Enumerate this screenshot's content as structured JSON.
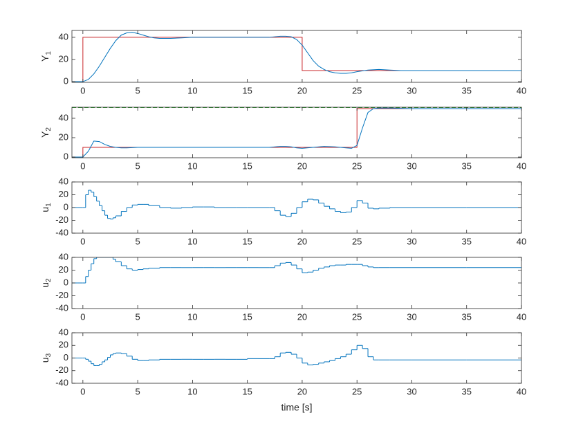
{
  "chart_data": [
    {
      "type": "line",
      "ylabel": "Y",
      "ylabel_sub": "1",
      "xlim": [
        -1,
        40
      ],
      "xticks": [
        0,
        5,
        10,
        15,
        20,
        25,
        30,
        35,
        40
      ],
      "ylim": [
        -0.6,
        46.2
      ],
      "yticks": [
        0,
        20,
        40
      ],
      "series": [
        {
          "color": "#c8262a",
          "x": [
            -1,
            0,
            0,
            20,
            20,
            40
          ],
          "values": [
            0,
            0,
            40,
            40,
            10,
            10
          ]
        },
        {
          "color": "#0072bd",
          "x": [
            -1,
            0,
            0.5,
            1,
            1.5,
            2,
            2.5,
            3,
            3.5,
            4,
            4.5,
            5,
            5.5,
            6,
            6.5,
            7,
            8,
            9,
            10,
            12,
            14,
            16,
            17,
            18,
            18.5,
            19,
            19.5,
            20,
            20.5,
            21,
            21.5,
            22,
            22.5,
            23,
            23.5,
            24,
            24.5,
            25,
            26,
            27,
            28,
            29,
            30,
            35,
            40
          ],
          "values": [
            0,
            0,
            2,
            7,
            14,
            22,
            30,
            37,
            42,
            44,
            44.5,
            43.5,
            42,
            40.5,
            39.5,
            39,
            39,
            39.5,
            40,
            40,
            40,
            40,
            40,
            41,
            41,
            40.5,
            38,
            33,
            26,
            19,
            14,
            11,
            9,
            8,
            7.5,
            7.5,
            8,
            9,
            10.5,
            11,
            10.5,
            10,
            10,
            10,
            10
          ]
        }
      ]
    },
    {
      "type": "line",
      "ylabel": "Y",
      "ylabel_sub": "2",
      "xlim": [
        -1,
        40
      ],
      "xticks": [
        0,
        5,
        10,
        15,
        20,
        25,
        30,
        35,
        40
      ],
      "ylim": [
        -0.7,
        51.4
      ],
      "yticks": [
        0,
        20,
        40
      ],
      "series": [
        {
          "color": "#2ca02c",
          "dash": true,
          "x": [
            -1,
            40
          ],
          "values": [
            51,
            51
          ]
        },
        {
          "color": "#e0c000",
          "dash": true,
          "x": [
            25,
            40
          ],
          "values": [
            50,
            50
          ]
        },
        {
          "color": "#c8262a",
          "x": [
            -1,
            0,
            0,
            25,
            25,
            40
          ],
          "values": [
            0,
            0,
            10,
            10,
            50,
            50
          ]
        },
        {
          "color": "#0072bd",
          "x": [
            -1,
            0,
            0.5,
            1,
            1.5,
            2,
            2.5,
            3,
            3.5,
            4,
            5,
            6,
            8,
            10,
            14,
            17,
            18,
            18.5,
            19,
            19.5,
            20,
            21,
            22,
            23,
            24,
            24.5,
            25,
            25.5,
            26,
            26.5,
            27,
            28,
            30,
            40
          ],
          "values": [
            0,
            0,
            6,
            16.5,
            16,
            13,
            11,
            10,
            9.5,
            9.5,
            10,
            10,
            10,
            10,
            10,
            10,
            11,
            11,
            10.5,
            9.5,
            9,
            10,
            11,
            10.5,
            9.5,
            9,
            12,
            30,
            46,
            50,
            50.5,
            50.5,
            50,
            50
          ]
        }
      ]
    },
    {
      "type": "line",
      "ylabel": "u",
      "ylabel_sub": "1",
      "xlim": [
        -1,
        40
      ],
      "xticks": [
        0,
        5,
        10,
        15,
        20,
        25,
        30,
        35,
        40
      ],
      "ylim": [
        -40,
        40
      ],
      "yticks": [
        -40,
        -20,
        0,
        20,
        40
      ],
      "series": [
        {
          "color": "#0072bd",
          "step": true,
          "x": [
            -1,
            -0.5,
            0,
            0.25,
            0.5,
            0.75,
            1,
            1.25,
            1.5,
            1.75,
            2,
            2.25,
            2.5,
            2.75,
            3,
            3.5,
            4,
            4.5,
            5,
            5.5,
            6,
            7,
            8,
            9,
            10,
            11,
            12,
            13,
            14,
            15,
            16,
            17,
            17.5,
            18,
            18.5,
            19,
            19.5,
            20,
            20.5,
            21,
            21.5,
            22,
            22.5,
            23,
            23.5,
            24,
            24.5,
            25,
            25.5,
            26,
            26.5,
            27,
            28,
            30,
            35,
            40
          ],
          "values": [
            0,
            0,
            0,
            20,
            27,
            24,
            17,
            10,
            3,
            -5,
            -12,
            -17,
            -18,
            -16,
            -13,
            -6,
            0,
            4,
            5,
            5,
            3,
            0,
            -1,
            0,
            1,
            1,
            0,
            0,
            0,
            0,
            0,
            0,
            -5,
            -12,
            -14,
            -9,
            0,
            9,
            13,
            12,
            7,
            2,
            -2,
            -6,
            -8,
            -7,
            0,
            11,
            7,
            -1,
            -2,
            -1,
            0,
            0,
            0,
            0
          ]
        }
      ]
    },
    {
      "type": "line",
      "ylabel": "u",
      "ylabel_sub": "2",
      "xlim": [
        -1,
        40
      ],
      "xticks": [
        0,
        5,
        10,
        15,
        20,
        25,
        30,
        35,
        40
      ],
      "ylim": [
        -40,
        40
      ],
      "yticks": [
        -40,
        -20,
        0,
        20,
        40
      ],
      "series": [
        {
          "color": "#0072bd",
          "step": true,
          "x": [
            -1,
            -0.5,
            0,
            0.25,
            0.5,
            0.75,
            1,
            1.25,
            1.5,
            1.75,
            2,
            2.25,
            2.5,
            2.75,
            3,
            3.5,
            4,
            4.5,
            5,
            5.5,
            6,
            7,
            8,
            9,
            10,
            11,
            12,
            13,
            14,
            15,
            16,
            17,
            17.5,
            18,
            18.5,
            19,
            19.5,
            20,
            20.5,
            21,
            21.5,
            22,
            22.5,
            23,
            23.5,
            24,
            24.5,
            25,
            25.5,
            26,
            26.5,
            27,
            28,
            30,
            35,
            40
          ],
          "values": [
            0,
            0,
            0,
            10,
            20,
            30,
            38,
            40,
            40,
            40,
            40,
            40,
            40,
            37,
            33,
            27,
            22,
            20,
            21,
            22,
            23,
            24,
            24,
            24,
            24,
            24,
            24,
            24,
            24,
            24,
            24,
            24,
            27,
            31,
            32,
            28,
            22,
            16,
            17,
            20,
            23,
            25,
            27,
            28,
            28,
            29,
            29,
            29,
            27,
            25,
            24,
            24,
            24,
            24,
            24,
            24
          ]
        }
      ]
    },
    {
      "type": "line",
      "ylabel": "u",
      "ylabel_sub": "3",
      "xlabel": "time [s]",
      "xlim": [
        -1,
        40
      ],
      "xticks": [
        0,
        5,
        10,
        15,
        20,
        25,
        30,
        35,
        40
      ],
      "ylim": [
        -40,
        40
      ],
      "yticks": [
        -40,
        -20,
        0,
        20,
        40
      ],
      "series": [
        {
          "color": "#0072bd",
          "step": true,
          "x": [
            -1,
            -0.5,
            0,
            0.25,
            0.5,
            0.75,
            1,
            1.25,
            1.5,
            1.75,
            2,
            2.25,
            2.5,
            2.75,
            3,
            3.5,
            4,
            4.5,
            5,
            5.5,
            6,
            7,
            8,
            9,
            10,
            11,
            12,
            13,
            14,
            15,
            16,
            17,
            17.5,
            18,
            18.5,
            19,
            19.5,
            20,
            20.5,
            21,
            21.5,
            22,
            22.5,
            23,
            23.5,
            24,
            24.5,
            25,
            25.5,
            26,
            26.5,
            27,
            28,
            30,
            35,
            40
          ],
          "values": [
            0,
            0,
            0,
            -2,
            -5,
            -9,
            -12,
            -12,
            -10,
            -6,
            -3,
            1,
            5,
            7,
            8,
            7,
            3,
            -2,
            -4,
            -4,
            -3,
            -2,
            -2,
            -2,
            -2,
            -2,
            -2,
            -2,
            -2,
            -1,
            -1,
            -1,
            2,
            8,
            9,
            6,
            0,
            -8,
            -11,
            -10,
            -8,
            -6,
            -4,
            -1,
            2,
            6,
            13,
            20,
            15,
            2,
            -3,
            -3,
            -3,
            -3,
            -3,
            -3
          ]
        }
      ]
    }
  ]
}
